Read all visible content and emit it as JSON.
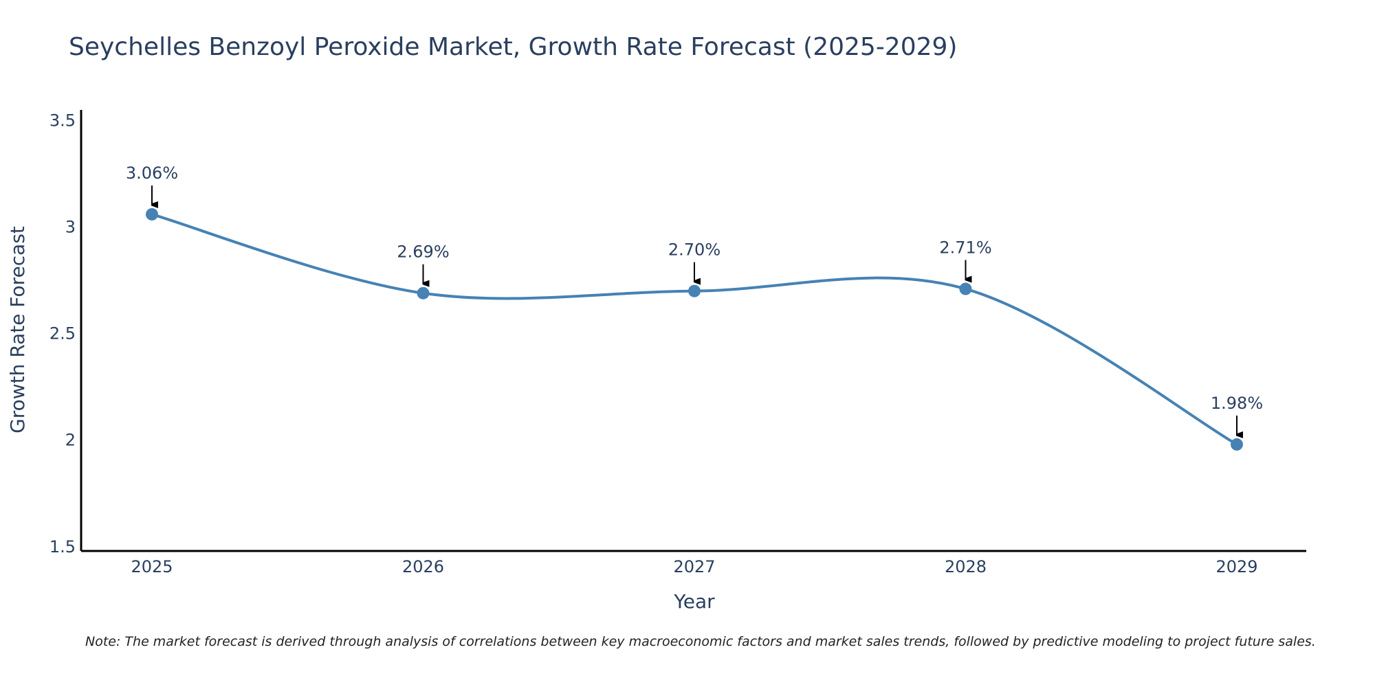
{
  "chart_data": {
    "type": "line",
    "title": "Seychelles Benzoyl Peroxide Market, Growth Rate Forecast (2025-2029)",
    "xlabel": "Year",
    "ylabel": "Growth Rate Forecast",
    "categories": [
      "2025",
      "2026",
      "2027",
      "2028",
      "2029"
    ],
    "series": [
      {
        "name": "Growth Rate Forecast",
        "values": [
          3.06,
          2.69,
          2.7,
          2.71,
          1.98
        ],
        "labels": [
          "3.06%",
          "2.69%",
          "2.70%",
          "2.71%",
          "1.98%"
        ],
        "color": "#4682b4"
      }
    ],
    "ylim": [
      1.48,
      3.55
    ],
    "yticks": [
      1.5,
      2,
      2.5,
      3,
      3.5
    ],
    "ytick_labels": [
      "1.5",
      "2",
      "2.5",
      "3",
      "3.5"
    ],
    "grid": false,
    "line_shape": "spline",
    "note": "Note: The market forecast is derived through analysis of correlations between key macroeconomic factors and market sales trends, followed by predictive modeling to project future sales."
  },
  "colors": {
    "text": "#2a3f5f",
    "axis": "#000000",
    "line": "#4682b4",
    "arrow": "#000000"
  }
}
